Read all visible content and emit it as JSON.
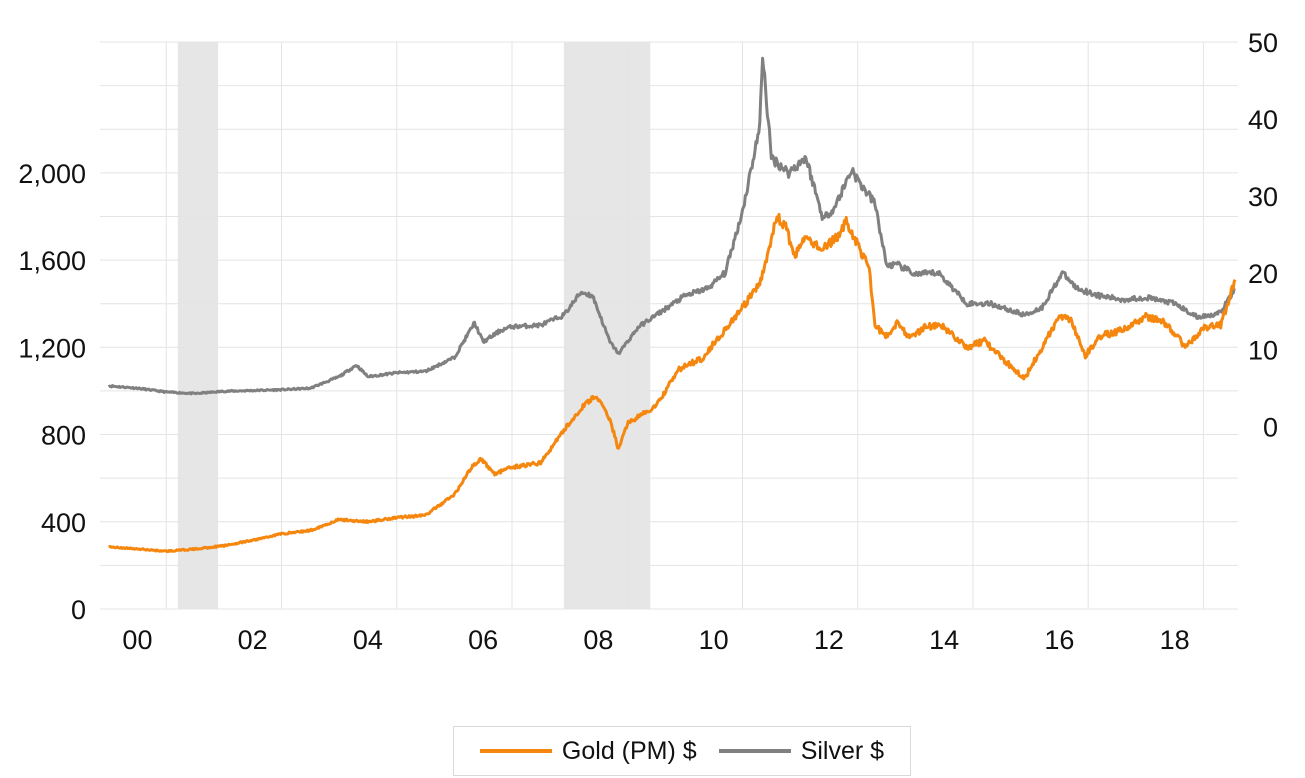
{
  "chart_data": {
    "type": "line",
    "title": "",
    "xlabel": "",
    "ylabel_left": "",
    "ylabel_right": "",
    "x_tick_labels": [
      "00",
      "02",
      "04",
      "06",
      "08",
      "10",
      "12",
      "14",
      "16",
      "18"
    ],
    "x_tick_years": [
      2000,
      2002,
      2004,
      2006,
      2008,
      2010,
      2012,
      2014,
      2016,
      2018
    ],
    "x_range": [
      1999.85,
      2019.6
    ],
    "y_left": {
      "tick_labels": [
        "0",
        "400",
        "800",
        "1,200",
        "1,600",
        "2,000"
      ],
      "tick_values": [
        0,
        400,
        800,
        1200,
        1600,
        2000
      ],
      "range": [
        0,
        2600
      ],
      "gridlines": [
        0,
        200,
        400,
        600,
        800,
        1000,
        1200,
        1400,
        1600,
        1800,
        2000,
        2200,
        2400,
        2600
      ]
    },
    "y_right": {
      "tick_labels": [
        "0",
        "10",
        "20",
        "30",
        "40",
        "50"
      ],
      "tick_values": [
        0,
        10,
        20,
        30,
        40,
        50
      ],
      "range": [
        -23.7,
        50
      ]
    },
    "grid": true,
    "shaded_periods": [
      [
        2001.2,
        2001.9
      ],
      [
        2007.9,
        2009.4
      ]
    ],
    "colors": {
      "gold": "#f5870f",
      "silver": "#808080",
      "shade": "#e6e6e6",
      "grid": "#e4e4e4"
    },
    "series": [
      {
        "name": "Gold (PM) $",
        "axis": "left",
        "x": [
          2000.0,
          2000.5,
          2001.0,
          2001.5,
          2002.0,
          2002.5,
          2003.0,
          2003.5,
          2004.0,
          2004.5,
          2005.0,
          2005.5,
          2006.0,
          2006.3,
          2006.45,
          2006.7,
          2007.0,
          2007.5,
          2007.9,
          2008.2,
          2008.45,
          2008.7,
          2008.85,
          2009.0,
          2009.5,
          2009.9,
          2010.3,
          2010.6,
          2011.0,
          2011.3,
          2011.6,
          2011.75,
          2011.9,
          2012.1,
          2012.4,
          2012.7,
          2012.8,
          2013.0,
          2013.2,
          2013.3,
          2013.5,
          2013.7,
          2013.9,
          2014.2,
          2014.5,
          2014.9,
          2015.2,
          2015.5,
          2015.9,
          2016.2,
          2016.5,
          2016.7,
          2016.95,
          2017.2,
          2017.6,
          2018.0,
          2018.3,
          2018.7,
          2019.0,
          2019.3,
          2019.55
        ],
        "values": [
          285,
          275,
          265,
          275,
          290,
          315,
          345,
          360,
          410,
          400,
          420,
          430,
          525,
          650,
          690,
          620,
          650,
          670,
          820,
          920,
          980,
          870,
          730,
          850,
          930,
          1100,
          1150,
          1250,
          1380,
          1490,
          1800,
          1750,
          1620,
          1700,
          1650,
          1720,
          1780,
          1670,
          1560,
          1300,
          1250,
          1320,
          1240,
          1300,
          1290,
          1200,
          1230,
          1150,
          1060,
          1200,
          1340,
          1330,
          1160,
          1250,
          1280,
          1340,
          1320,
          1200,
          1290,
          1300,
          1510
        ]
      },
      {
        "name": "Silver $",
        "axis": "right",
        "x": [
          2000.0,
          2000.5,
          2001.0,
          2001.5,
          2002.0,
          2002.5,
          2003.0,
          2003.5,
          2004.0,
          2004.3,
          2004.5,
          2005.0,
          2005.5,
          2006.0,
          2006.35,
          2006.5,
          2006.8,
          2007.0,
          2007.5,
          2007.9,
          2008.2,
          2008.4,
          2008.7,
          2008.85,
          2009.2,
          2009.6,
          2010.0,
          2010.4,
          2010.7,
          2011.0,
          2011.3,
          2011.35,
          2011.5,
          2011.8,
          2012.1,
          2012.4,
          2012.6,
          2012.9,
          2013.0,
          2013.3,
          2013.5,
          2013.7,
          2014.0,
          2014.4,
          2014.9,
          2015.3,
          2015.9,
          2016.2,
          2016.55,
          2016.8,
          2017.2,
          2017.6,
          2018.0,
          2018.5,
          2018.9,
          2019.3,
          2019.55
        ],
        "values": [
          5.3,
          5.0,
          4.5,
          4.3,
          4.6,
          4.7,
          4.8,
          5.0,
          6.5,
          8.0,
          6.5,
          7.0,
          7.2,
          9.0,
          13.5,
          11.0,
          12.5,
          13.0,
          13.2,
          14.5,
          17.5,
          17.0,
          11.0,
          9.5,
          13.0,
          15.0,
          17.0,
          18.0,
          20.0,
          28.0,
          39.0,
          48.5,
          35.0,
          33.0,
          35.0,
          27.0,
          28.5,
          33.5,
          32.0,
          29.0,
          21.0,
          21.0,
          19.8,
          20.0,
          16.0,
          16.0,
          14.5,
          15.5,
          20.0,
          18.0,
          17.0,
          16.5,
          16.8,
          16.0,
          14.2,
          14.8,
          18.0
        ]
      }
    ]
  }
}
